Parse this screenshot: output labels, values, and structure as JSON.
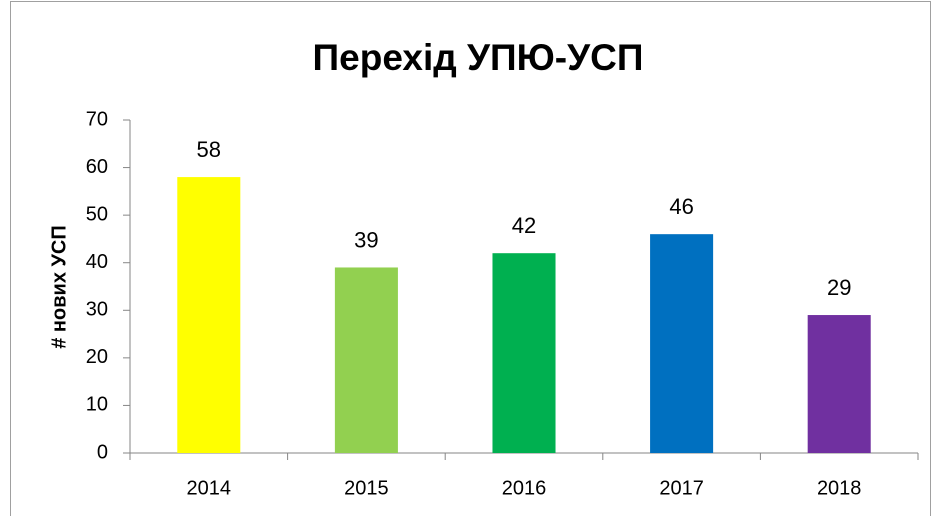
{
  "chart_data": {
    "type": "bar",
    "title": "Перехід УПЮ-УСП",
    "y_label": "# нових УСП",
    "categories": [
      "2014",
      "2015",
      "2016",
      "2017",
      "2018"
    ],
    "values": [
      58,
      39,
      42,
      46,
      29
    ],
    "colors": [
      "#ffff00",
      "#92d050",
      "#00b050",
      "#0070c0",
      "#7030a0"
    ],
    "ylim": [
      0,
      70
    ],
    "yticks": [
      0,
      10,
      20,
      30,
      40,
      50,
      60,
      70
    ],
    "grid": false
  }
}
